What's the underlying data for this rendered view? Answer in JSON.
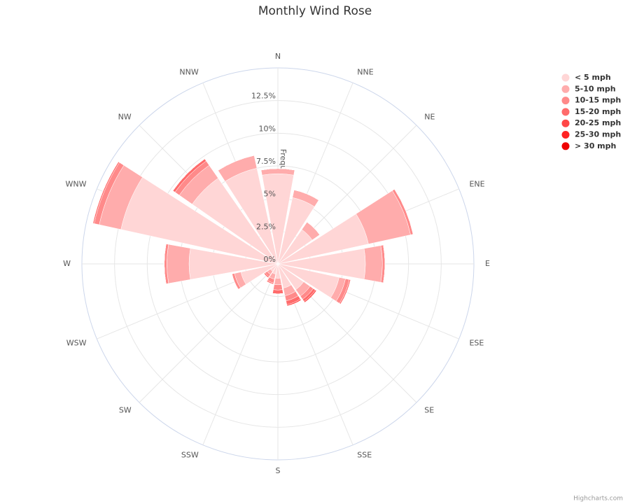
{
  "chart_data": {
    "type": "windrose",
    "title": "Monthly Wind Rose",
    "y_axis_title": "Frequency (%)",
    "credits": "Highcharts.com",
    "categories": [
      "N",
      "NNE",
      "NE",
      "ENE",
      "E",
      "ESE",
      "SE",
      "SSE",
      "S",
      "SSW",
      "SW",
      "WSW",
      "W",
      "WNW",
      "NW",
      "NNW"
    ],
    "ylim": [
      0,
      15
    ],
    "yticks": [
      {
        "value": 0,
        "label": "0%"
      },
      {
        "value": 2.5,
        "label": "2.5%"
      },
      {
        "value": 5,
        "label": "5%"
      },
      {
        "value": 7.5,
        "label": "7.5%"
      },
      {
        "value": 10,
        "label": "10%"
      },
      {
        "value": 12.5,
        "label": "12.5%"
      }
    ],
    "grid": true,
    "stacked": true,
    "legend_position": "top-right",
    "series": [
      {
        "name": "< 5 mph",
        "color": "#ffd6d6",
        "values": [
          6.9,
          5.2,
          3.2,
          7.1,
          6.7,
          4.8,
          2.4,
          1.9,
          1.1,
          0.8,
          0.7,
          2.9,
          6.8,
          12.3,
          8.0,
          7.5
        ]
      },
      {
        "name": "5-10 mph",
        "color": "#ffacac",
        "values": [
          0.4,
          0.6,
          0.7,
          3.3,
          1.3,
          0.5,
          0.6,
          0.6,
          0.5,
          0.4,
          0.3,
          0.5,
          1.7,
          1.7,
          1.2,
          1.0
        ]
      },
      {
        "name": "10-15 mph",
        "color": "#ff8a8a",
        "values": [
          0,
          0,
          0,
          0.2,
          0.2,
          0.3,
          0.3,
          0.4,
          0.4,
          0.3,
          0.2,
          0.2,
          0.2,
          0.4,
          0.4,
          0
        ]
      },
      {
        "name": "15-20 mph",
        "color": "#ff6b6b",
        "values": [
          0,
          0,
          0,
          0,
          0,
          0.1,
          0.2,
          0.3,
          0.3,
          0.1,
          0.1,
          0,
          0,
          0.1,
          0.2,
          0
        ]
      },
      {
        "name": "20-25 mph",
        "color": "#ff4747",
        "values": [
          0,
          0,
          0,
          0,
          0,
          0,
          0.1,
          0.1,
          0,
          0,
          0,
          0,
          0,
          0,
          0,
          0
        ]
      },
      {
        "name": "25-30 mph",
        "color": "#ff2323",
        "values": [
          0,
          0,
          0,
          0,
          0,
          0,
          0,
          0,
          0,
          0,
          0,
          0,
          0,
          0,
          0,
          0
        ]
      },
      {
        "name": "> 30 mph",
        "color": "#ee0000",
        "values": [
          0,
          0,
          0,
          0,
          0,
          0,
          0,
          0,
          0,
          0,
          0,
          0,
          0,
          0,
          0,
          0
        ]
      }
    ]
  }
}
